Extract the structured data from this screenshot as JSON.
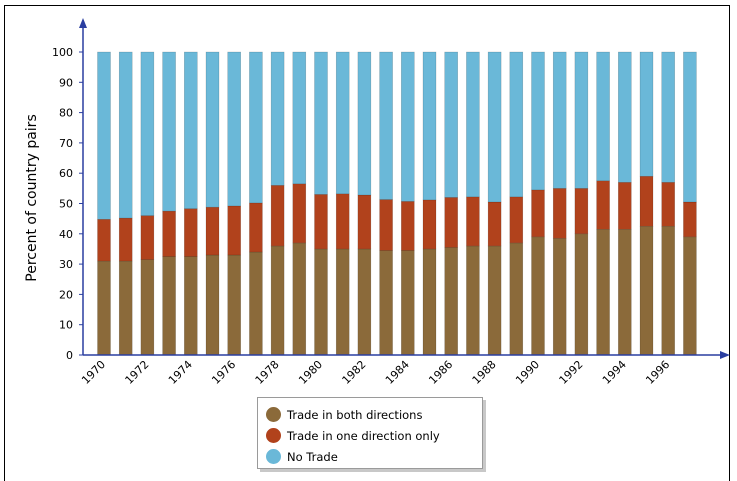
{
  "chart_data": {
    "type": "bar",
    "stacked": true,
    "ylabel": "Percent of country pairs",
    "xlabel": "",
    "ylim": [
      0,
      100
    ],
    "yticks": [
      0,
      10,
      20,
      30,
      40,
      50,
      60,
      70,
      80,
      90,
      100
    ],
    "categories": [
      "1970",
      "1971",
      "1972",
      "1973",
      "1974",
      "1975",
      "1976",
      "1977",
      "1978",
      "1979",
      "1980",
      "1981",
      "1982",
      "1983",
      "1984",
      "1985",
      "1986",
      "1987",
      "1988",
      "1989",
      "1990",
      "1991",
      "1992",
      "1993",
      "1994",
      "1995",
      "1996",
      "1997"
    ],
    "xtick_labels": [
      "1970",
      "",
      "1972",
      "",
      "1974",
      "",
      "1976",
      "",
      "1978",
      "",
      "1980",
      "",
      "1982",
      "",
      "1984",
      "",
      "1986",
      "",
      "1988",
      "",
      "1990",
      "",
      "1992",
      "",
      "1994",
      "",
      "1996",
      ""
    ],
    "series": [
      {
        "name": "Trade in both directions",
        "color": "#8b6a3a",
        "values": [
          31,
          31,
          31.5,
          32.5,
          32.5,
          33,
          33,
          34,
          36,
          37,
          35,
          35,
          35,
          34.5,
          34.5,
          35,
          35.5,
          36,
          36,
          37,
          39,
          38.5,
          40,
          41.5,
          41.5,
          42.5,
          42.5,
          39
        ]
      },
      {
        "name": "Trade in one direction only",
        "color": "#b1421c",
        "values": [
          13.8,
          14.2,
          14.5,
          15,
          15.8,
          15.8,
          16.2,
          16.2,
          20,
          19.5,
          18,
          18.2,
          17.8,
          16.8,
          16.2,
          16.2,
          16.5,
          16.2,
          14.5,
          15.2,
          15.5,
          16.5,
          15,
          16,
          15.5,
          16.5,
          14.5,
          11.5
        ]
      },
      {
        "name": "No Trade",
        "color": "#6ab8d8",
        "values": [
          55.2,
          54.8,
          54,
          52.5,
          51.7,
          51.2,
          50.8,
          49.8,
          44,
          43.5,
          47,
          46.8,
          47.2,
          48.7,
          49.3,
          48.8,
          48,
          47.8,
          49.5,
          47.8,
          45.5,
          45,
          45,
          42.5,
          43,
          41,
          43,
          49.5
        ]
      }
    ],
    "legend_position": "bottom-center",
    "grid": false
  },
  "legend": {
    "items": [
      {
        "label": "Trade in both directions",
        "color": "#8b6a3a"
      },
      {
        "label": "Trade in one direction only",
        "color": "#b1421c"
      },
      {
        "label": "No Trade",
        "color": "#6ab8d8"
      }
    ]
  }
}
